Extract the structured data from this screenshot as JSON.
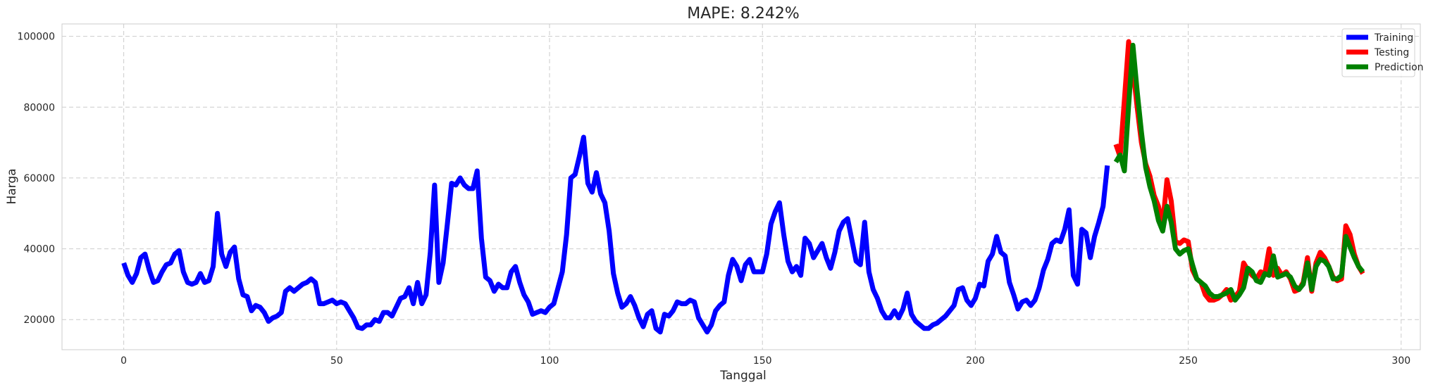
{
  "chart_data": {
    "type": "line",
    "title": "MAPE: 8.242%",
    "xlabel": "Tanggal",
    "ylabel": "Harga",
    "xlim": [
      -14.5,
      304.5
    ],
    "ylim": [
      11500,
      103500
    ],
    "xticks": [
      0,
      50,
      100,
      150,
      200,
      250,
      300
    ],
    "yticks": [
      20000,
      40000,
      60000,
      80000,
      100000
    ],
    "grid": true,
    "legend_position": "top-right",
    "series": [
      {
        "name": "Training",
        "color": "#0000ff",
        "x_start": 0,
        "values": [
          36000,
          32500,
          30500,
          33000,
          37500,
          38500,
          34000,
          30500,
          31000,
          33500,
          35500,
          36000,
          38500,
          39500,
          33500,
          30500,
          30000,
          30500,
          33000,
          30500,
          31000,
          35000,
          50000,
          38500,
          35000,
          39000,
          40500,
          31500,
          27000,
          26500,
          22500,
          24000,
          23500,
          22000,
          19500,
          20500,
          21000,
          22000,
          28000,
          29000,
          28000,
          29000,
          30000,
          30500,
          31500,
          30500,
          24500,
          24500,
          25000,
          25500,
          24500,
          25000,
          24500,
          22500,
          20500,
          17800,
          17500,
          18500,
          18500,
          20000,
          19500,
          22000,
          22000,
          21000,
          23500,
          26000,
          26500,
          29000,
          24500,
          30500,
          24500,
          27000,
          39000,
          58000,
          30500,
          36000,
          47000,
          58500,
          58000,
          60000,
          58000,
          57000,
          57000,
          62000,
          43000,
          32000,
          31000,
          28000,
          30000,
          29000,
          29000,
          33500,
          35000,
          30500,
          27000,
          25000,
          21500,
          22000,
          22500,
          22000,
          23500,
          24500,
          29000,
          33500,
          44000,
          60000,
          61000,
          66000,
          71500,
          58500,
          56000,
          61500,
          55500,
          53000,
          45000,
          33000,
          27500,
          23500,
          24500,
          26500,
          24000,
          20500,
          18000,
          21500,
          22500,
          17500,
          16500,
          21500,
          21000,
          22500,
          25000,
          24500,
          24500,
          25500,
          25000,
          20500,
          18500,
          16500,
          18500,
          22500,
          24000,
          25000,
          32500,
          37000,
          35000,
          31000,
          35500,
          37000,
          33500,
          33500,
          33500,
          38500,
          47000,
          50500,
          53000,
          44000,
          36500,
          33500,
          35000,
          32500,
          43000,
          41500,
          37500,
          39500,
          41500,
          37500,
          34500,
          39000,
          45000,
          47500,
          48500,
          42500,
          36500,
          35500,
          47500,
          33500,
          28500,
          26000,
          22500,
          20500,
          20500,
          22500,
          20500,
          23000,
          27500,
          21500,
          19500,
          18500,
          17500,
          17500,
          18500,
          19000,
          20000,
          21000,
          22500,
          24000,
          28500,
          29000,
          25500,
          24000,
          26000,
          30000,
          29500,
          36500,
          38500,
          43500,
          39000,
          38000,
          30500,
          27000,
          23000,
          25000,
          25500,
          24000,
          25500,
          29000,
          34000,
          37000,
          41500,
          42500,
          42000,
          45500,
          51000,
          32500,
          30000,
          45500,
          44500,
          37500,
          43500,
          47500,
          52000,
          63500
        ]
      },
      {
        "name": "Testing",
        "color": "#ff0000",
        "x_start": 233,
        "values": [
          69500,
          66000,
          82000,
          98500,
          91000,
          80000,
          70000,
          64000,
          60500,
          55000,
          52000,
          47000,
          59500,
          53500,
          42000,
          41500,
          42500,
          42000,
          34000,
          31500,
          30500,
          27000,
          25500,
          25500,
          26000,
          27000,
          28500,
          25500,
          26500,
          28000,
          36000,
          34000,
          32500,
          31500,
          33500,
          33000,
          40000,
          32500,
          34500,
          32500,
          33500,
          31500,
          28000,
          28500,
          30500,
          37500,
          28000,
          36000,
          39000,
          37500,
          35000,
          32000,
          31000,
          31500,
          46500,
          44000,
          38500,
          35000,
          33000
        ]
      },
      {
        "name": "Prediction",
        "color": "#008000",
        "x_start": 233,
        "values": [
          64500,
          66500,
          62000,
          80500,
          97500,
          84500,
          73000,
          63000,
          57500,
          53500,
          48000,
          45000,
          52000,
          47500,
          40000,
          38500,
          39500,
          40000,
          35500,
          31500,
          30500,
          29500,
          27500,
          26500,
          26500,
          27000,
          27500,
          28500,
          25500,
          27000,
          29000,
          34500,
          33500,
          31000,
          30500,
          33000,
          32500,
          38000,
          32000,
          32500,
          33000,
          32000,
          29500,
          28500,
          30000,
          36000,
          28500,
          35000,
          37000,
          36500,
          35000,
          31500,
          31500,
          32500,
          43500,
          40500,
          37500,
          35000,
          33500
        ]
      }
    ]
  }
}
